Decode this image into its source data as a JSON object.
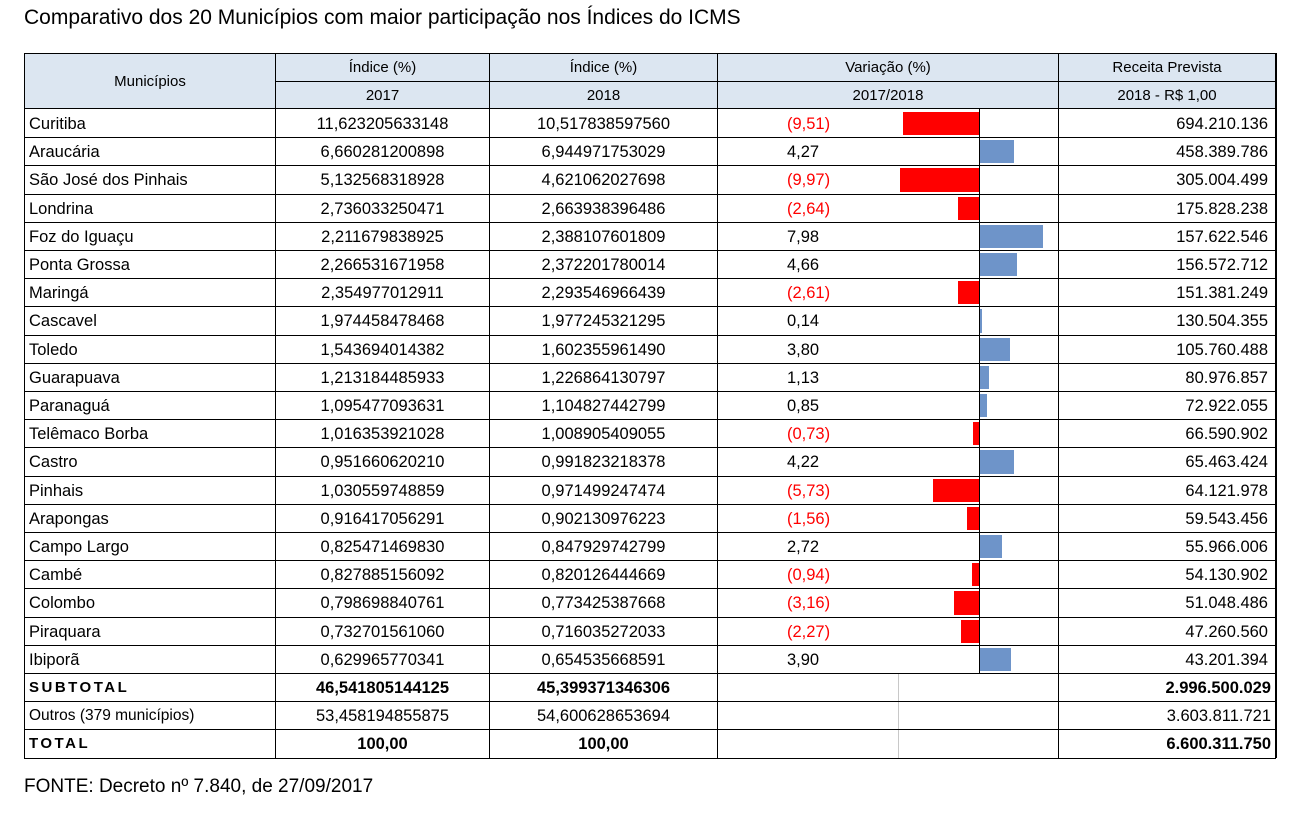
{
  "title": "Comparativo dos 20 Municípios com maior participação nos Índices do ICMS",
  "headers": {
    "municipios": "Municípios",
    "indice_2017_top": "Índice (%)",
    "indice_2017_bottom": "2017",
    "indice_2018_top": "Índice (%)",
    "indice_2018_bottom": "2018",
    "variacao_top": "Variação (%)",
    "variacao_bottom": "2017/2018",
    "receita_top": "Receita Prevista",
    "receita_bottom": "2018 - R$ 1,00"
  },
  "rows": [
    {
      "name": "Curitiba",
      "i2017": "11,623205633148",
      "i2018": "10,517838597560",
      "var": -9.51,
      "var_label": "(9,51)",
      "receita": "694.210.136"
    },
    {
      "name": "Araucária",
      "i2017": "6,660281200898",
      "i2018": "6,944971753029",
      "var": 4.27,
      "var_label": "4,27",
      "receita": "458.389.786"
    },
    {
      "name": "São José dos Pinhais",
      "i2017": "5,132568318928",
      "i2018": "4,621062027698",
      "var": -9.97,
      "var_label": "(9,97)",
      "receita": "305.004.499"
    },
    {
      "name": "Londrina",
      "i2017": "2,736033250471",
      "i2018": "2,663938396486",
      "var": -2.64,
      "var_label": "(2,64)",
      "receita": "175.828.238"
    },
    {
      "name": "Foz do Iguaçu",
      "i2017": "2,211679838925",
      "i2018": "2,388107601809",
      "var": 7.98,
      "var_label": "7,98",
      "receita": "157.622.546"
    },
    {
      "name": "Ponta Grossa",
      "i2017": "2,266531671958",
      "i2018": "2,372201780014",
      "var": 4.66,
      "var_label": "4,66",
      "receita": "156.572.712"
    },
    {
      "name": "Maringá",
      "i2017": "2,354977012911",
      "i2018": "2,293546966439",
      "var": -2.61,
      "var_label": "(2,61)",
      "receita": "151.381.249"
    },
    {
      "name": "Cascavel",
      "i2017": "1,974458478468",
      "i2018": "1,977245321295",
      "var": 0.14,
      "var_label": "0,14",
      "receita": "130.504.355"
    },
    {
      "name": "Toledo",
      "i2017": "1,543694014382",
      "i2018": "1,602355961490",
      "var": 3.8,
      "var_label": "3,80",
      "receita": "105.760.488"
    },
    {
      "name": "Guarapuava",
      "i2017": "1,213184485933",
      "i2018": "1,226864130797",
      "var": 1.13,
      "var_label": "1,13",
      "receita": "80.976.857"
    },
    {
      "name": "Paranaguá",
      "i2017": "1,095477093631",
      "i2018": "1,104827442799",
      "var": 0.85,
      "var_label": "0,85",
      "receita": "72.922.055"
    },
    {
      "name": "Telêmaco Borba",
      "i2017": "1,016353921028",
      "i2018": "1,008905409055",
      "var": -0.73,
      "var_label": "(0,73)",
      "receita": "66.590.902"
    },
    {
      "name": "Castro",
      "i2017": "0,951660620210",
      "i2018": "0,991823218378",
      "var": 4.22,
      "var_label": "4,22",
      "receita": "65.463.424"
    },
    {
      "name": "Pinhais",
      "i2017": "1,030559748859",
      "i2018": "0,971499247474",
      "var": -5.73,
      "var_label": "(5,73)",
      "receita": "64.121.978"
    },
    {
      "name": "Arapongas",
      "i2017": "0,916417056291",
      "i2018": "0,902130976223",
      "var": -1.56,
      "var_label": "(1,56)",
      "receita": "59.543.456"
    },
    {
      "name": "Campo Largo",
      "i2017": "0,825471469830",
      "i2018": "0,847929742799",
      "var": 2.72,
      "var_label": "2,72",
      "receita": "55.966.006"
    },
    {
      "name": "Cambé",
      "i2017": "0,827885156092",
      "i2018": "0,820126444669",
      "var": -0.94,
      "var_label": "(0,94)",
      "receita": "54.130.902"
    },
    {
      "name": "Colombo",
      "i2017": "0,798698840761",
      "i2018": "0,773425387668",
      "var": -3.16,
      "var_label": "(3,16)",
      "receita": "51.048.486"
    },
    {
      "name": "Piraquara",
      "i2017": "0,732701561060",
      "i2018": "0,716035272033",
      "var": -2.27,
      "var_label": "(2,27)",
      "receita": "47.260.560"
    },
    {
      "name": "Ibiporã",
      "i2017": "0,629965770341",
      "i2018": "0,654535668591",
      "var": 3.9,
      "var_label": "3,90",
      "receita": "43.201.394"
    }
  ],
  "subtotal": {
    "label": "SUBTOTAL",
    "i2017": "46,541805144125",
    "i2018": "45,399371346306",
    "receita": "2.996.500.029"
  },
  "outros": {
    "label": "Outros (379 municípios)",
    "i2017": "53,458194855875",
    "i2018": "54,600628653694",
    "receita": "3.603.811.721"
  },
  "total": {
    "label": "TOTAL",
    "i2017": "100,00",
    "i2018": "100,00",
    "receita": "6.600.311.750"
  },
  "source": "FONTE: Decreto nº 7.840, de 27/09/2017",
  "colors": {
    "header_bg": "#dce6f1",
    "negative": "#ff0000",
    "positive_bar": "#6e94c9"
  }
}
